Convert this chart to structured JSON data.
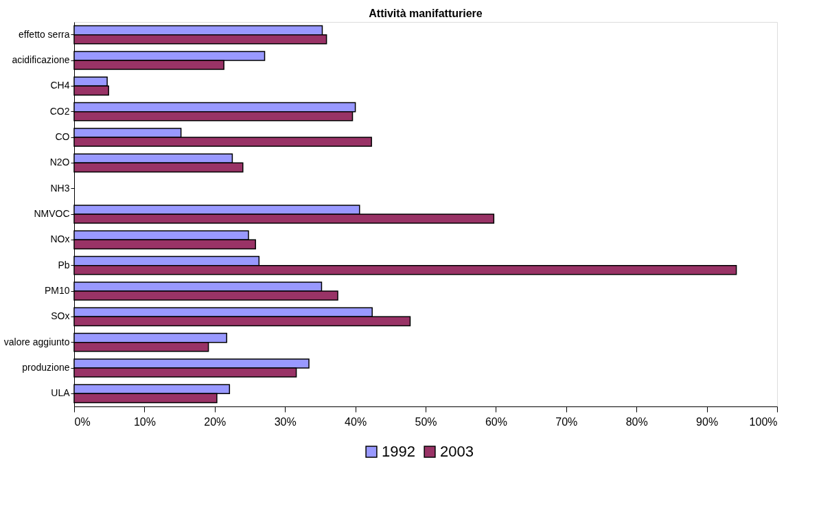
{
  "chart_data": {
    "type": "bar",
    "orientation": "horizontal",
    "title": "Attività manifatturiere",
    "categories": [
      "effetto serra",
      "acidificazione",
      "CH4",
      "CO2",
      "CO",
      "N2O",
      "NH3",
      "NMVOC",
      "NOx",
      "Pb",
      "PM10",
      "SOx",
      "valore aggiunto",
      "produzione",
      "ULA"
    ],
    "series": [
      {
        "name": "1992",
        "color": "#9999ff",
        "values": [
          35.3,
          27.1,
          4.7,
          40.0,
          15.2,
          22.5,
          null,
          40.6,
          24.8,
          26.3,
          35.2,
          42.4,
          21.7,
          33.4,
          22.1
        ]
      },
      {
        "name": "2003",
        "color": "#993366",
        "values": [
          35.9,
          21.3,
          4.9,
          39.6,
          42.3,
          24.0,
          null,
          59.7,
          25.8,
          94.2,
          37.5,
          47.8,
          19.1,
          31.6,
          20.3
        ]
      }
    ],
    "xlim": [
      0,
      100
    ],
    "xticks": [
      {
        "value": 0,
        "label": "0%"
      },
      {
        "value": 10,
        "label": "10%"
      },
      {
        "value": 20,
        "label": "20%"
      },
      {
        "value": 30,
        "label": "30%"
      },
      {
        "value": 40,
        "label": "40%"
      },
      {
        "value": 50,
        "label": "50%"
      },
      {
        "value": 60,
        "label": "60%"
      },
      {
        "value": 70,
        "label": "70%"
      },
      {
        "value": 80,
        "label": "80%"
      },
      {
        "value": 90,
        "label": "90%"
      },
      {
        "value": 100,
        "label": "100%"
      }
    ],
    "grid": false,
    "legend": "bottom"
  }
}
